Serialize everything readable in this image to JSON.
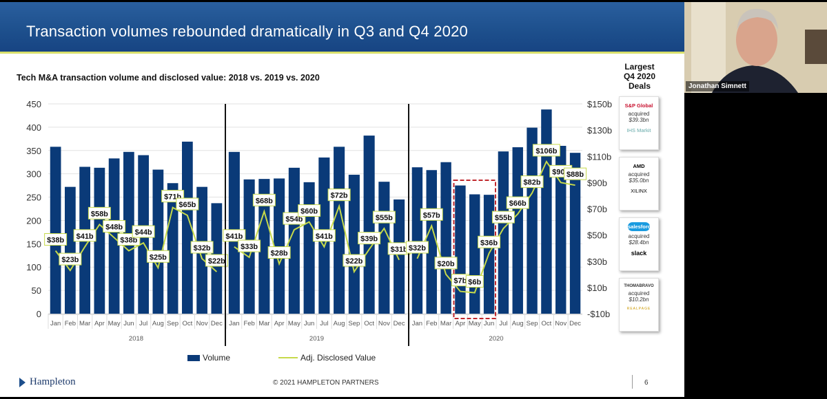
{
  "slide": {
    "title": "Transaction volumes rebounded dramatically in Q3 and Q4 2020",
    "subtitle": "Tech M&A transaction volume and disclosed value: 2018 vs. 2019 vs. 2020",
    "footer_logo": "Hampleton",
    "copyright": "© 2021 HAMPLETON PARTNERS",
    "page_number": "6"
  },
  "deals": {
    "title_lines": [
      "Largest",
      "Q4 2020",
      "Deals"
    ],
    "items": [
      {
        "buyer": "S&P Global",
        "verb": "acquired",
        "amount": "$39.3bn",
        "target": "IHS Markit"
      },
      {
        "buyer": "AMD",
        "verb": "acquired",
        "amount": "$35.0bn",
        "target": "XILINX"
      },
      {
        "buyer": "salesforce",
        "verb": "acquired",
        "amount": "$28.4bn",
        "target": "slack"
      },
      {
        "buyer": "THOMABRAVO",
        "verb": "acquired",
        "amount": "$10.2bn",
        "target": "REALPAGE"
      }
    ]
  },
  "video": {
    "participant_name": "Jonathan Simnett"
  },
  "colors": {
    "bar": "#0a3a78",
    "line": "#c6d94a",
    "banner": "#1d4f8c",
    "highlight": "#c0282d"
  },
  "chart_data": {
    "type": "bar",
    "title": "Tech M&A transaction volume and disclosed value: 2018 vs. 2019 vs. 2020",
    "months": [
      "Jan",
      "Feb",
      "Mar",
      "Apr",
      "May",
      "Jun",
      "Jul",
      "Aug",
      "Sep",
      "Oct",
      "Nov",
      "Dec"
    ],
    "left_axis": {
      "min": 0,
      "max": 450,
      "step": 50,
      "ticks": [
        "0",
        "50",
        "100",
        "150",
        "200",
        "250",
        "300",
        "350",
        "400",
        "450"
      ]
    },
    "right_axis": {
      "min": -10,
      "max": 150,
      "step": 20,
      "ticks": [
        "-$10b",
        "$10b",
        "$30b",
        "$50b",
        "$70b",
        "$90b",
        "$110b",
        "$130b",
        "$150b"
      ]
    },
    "grid": true,
    "legend": {
      "position": "bottom",
      "entries": [
        "Volume",
        "Adj. Disclosed Value"
      ]
    },
    "panels": [
      {
        "year": "2018",
        "volume": [
          358,
          272,
          315,
          313,
          333,
          347,
          340,
          309,
          280,
          369,
          272,
          237
        ],
        "value": [
          38,
          23,
          41,
          58,
          48,
          38,
          44,
          25,
          71,
          65,
          32,
          22
        ],
        "value_labels": [
          "$38b",
          "$23b",
          "$41b",
          "$58b",
          "$48b",
          "$38b",
          "$44b",
          "$25b",
          "$71b",
          "$65b",
          "$32b",
          "$22b"
        ]
      },
      {
        "year": "2019",
        "volume": [
          347,
          288,
          289,
          290,
          313,
          282,
          335,
          358,
          298,
          382,
          283,
          245
        ],
        "value": [
          41,
          33,
          68,
          28,
          54,
          60,
          41,
          72,
          22,
          39,
          55,
          31
        ],
        "value_labels": [
          "$41b",
          "$33b",
          "$68b",
          "$28b",
          "$54b",
          "$60b",
          "$41b",
          "$72b",
          "$22b",
          "$39b",
          "$55b",
          "$31b"
        ]
      },
      {
        "year": "2020",
        "volume": [
          314,
          308,
          325,
          275,
          256,
          255,
          348,
          357,
          399,
          438,
          360,
          345
        ],
        "value": [
          32,
          57,
          20,
          7,
          6,
          36,
          55,
          66,
          82,
          106,
          90,
          88
        ],
        "value_labels": [
          "$32b",
          "$57b",
          "$20b",
          "$7b",
          "$6b",
          "$36b",
          "$55b",
          "$66b",
          "$82b",
          "$106b",
          "$90b",
          "$88b"
        ],
        "highlight_months": [
          "Apr",
          "May",
          "Jun"
        ]
      }
    ]
  }
}
